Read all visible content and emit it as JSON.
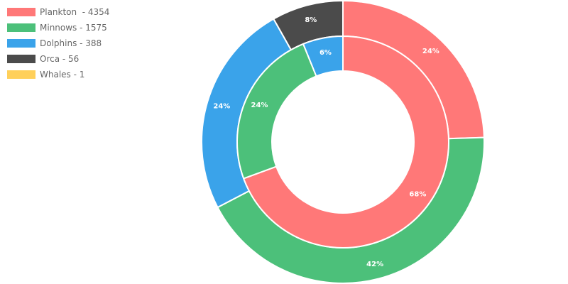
{
  "legend": [
    {
      "label": "Plankton  - 4354",
      "color": "#ff7878"
    },
    {
      "label": "Minnows - 1575",
      "color": "#4cc07a"
    },
    {
      "label": "Dolphins - 388",
      "color": "#3aa3ea"
    },
    {
      "label": "Orca - 56",
      "color": "#4b4b4b"
    },
    {
      "label": "Whales - 1",
      "color": "#ffd05a"
    }
  ],
  "chart_data": {
    "type": "pie",
    "variant": "nested-doughnut",
    "legend_position": "top-left",
    "rings": [
      {
        "ring": "outer",
        "values": [
          24,
          42,
          24,
          8
        ],
        "labels": [
          "24%",
          "42%",
          "24%",
          "8%"
        ],
        "colors": [
          "#ff7878",
          "#4cc07a",
          "#3aa3ea",
          "#4b4b4b"
        ]
      },
      {
        "ring": "inner",
        "values": [
          68,
          24,
          6
        ],
        "labels": [
          "68%",
          "24%",
          "6%"
        ],
        "colors": [
          "#ff7878",
          "#4cc07a",
          "#3aa3ea"
        ]
      }
    ]
  }
}
